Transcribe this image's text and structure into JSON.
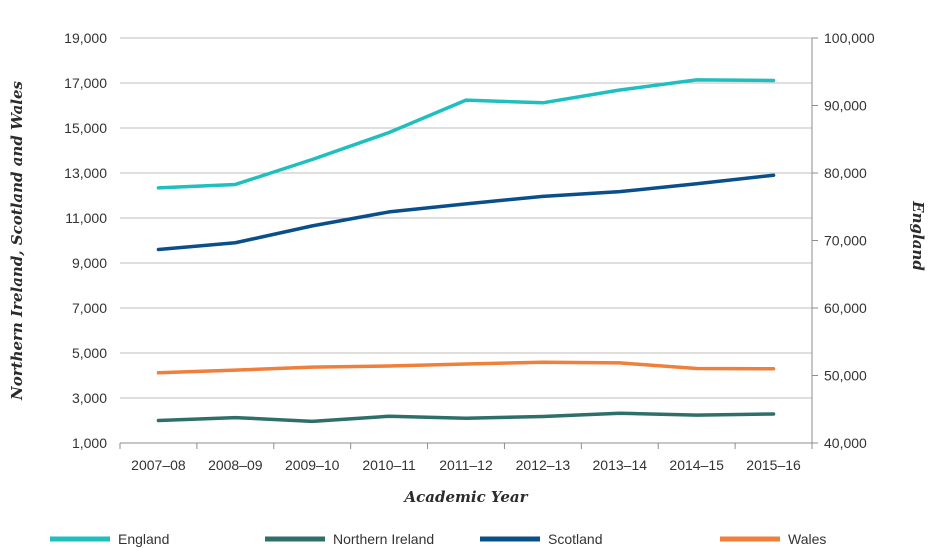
{
  "chart_data": {
    "type": "line",
    "xlabel": "Academic Year",
    "ylabel_left": "Northern Ireland, Scotland and Wales",
    "ylabel_right": "England",
    "categories": [
      "2007–08",
      "2008–09",
      "2009–10",
      "2010–11",
      "2011–12",
      "2012–13",
      "2013–14",
      "2014–15",
      "2015–16"
    ],
    "y_left": {
      "min": 1000,
      "max": 19000,
      "ticks": [
        1000,
        3000,
        5000,
        7000,
        9000,
        11000,
        13000,
        15000,
        17000,
        19000
      ],
      "tick_labels": [
        "1,000",
        "3,000",
        "5,000",
        "7,000",
        "9,000",
        "11,000",
        "13,000",
        "15,000",
        "17,000",
        "19,000"
      ]
    },
    "y_right": {
      "min": 40000,
      "max": 100000,
      "ticks": [
        40000,
        50000,
        60000,
        70000,
        80000,
        90000,
        100000
      ],
      "tick_labels": [
        "40,000",
        "50,000",
        "60,000",
        "70,000",
        "80,000",
        "90,000",
        "100,000"
      ]
    },
    "grid": true,
    "legend_position": "bottom",
    "series": [
      {
        "name": "England",
        "axis": "right",
        "color": "#1fbfbf",
        "values": [
          77800,
          78300,
          82000,
          86000,
          90800,
          90400,
          92300,
          93800,
          93700
        ]
      },
      {
        "name": "Northern Ireland",
        "axis": "left",
        "color": "#2f6f6a",
        "values": [
          2000,
          2130,
          1960,
          2190,
          2100,
          2180,
          2320,
          2240,
          2290
        ]
      },
      {
        "name": "Scotland",
        "axis": "left",
        "color": "#0b4f8a",
        "values": [
          9600,
          9900,
          10650,
          11270,
          11630,
          11960,
          12170,
          12520,
          12900
        ]
      },
      {
        "name": "Wales",
        "axis": "left",
        "color": "#f07f3c",
        "values": [
          4120,
          4240,
          4370,
          4420,
          4510,
          4590,
          4560,
          4310,
          4300
        ]
      }
    ]
  }
}
